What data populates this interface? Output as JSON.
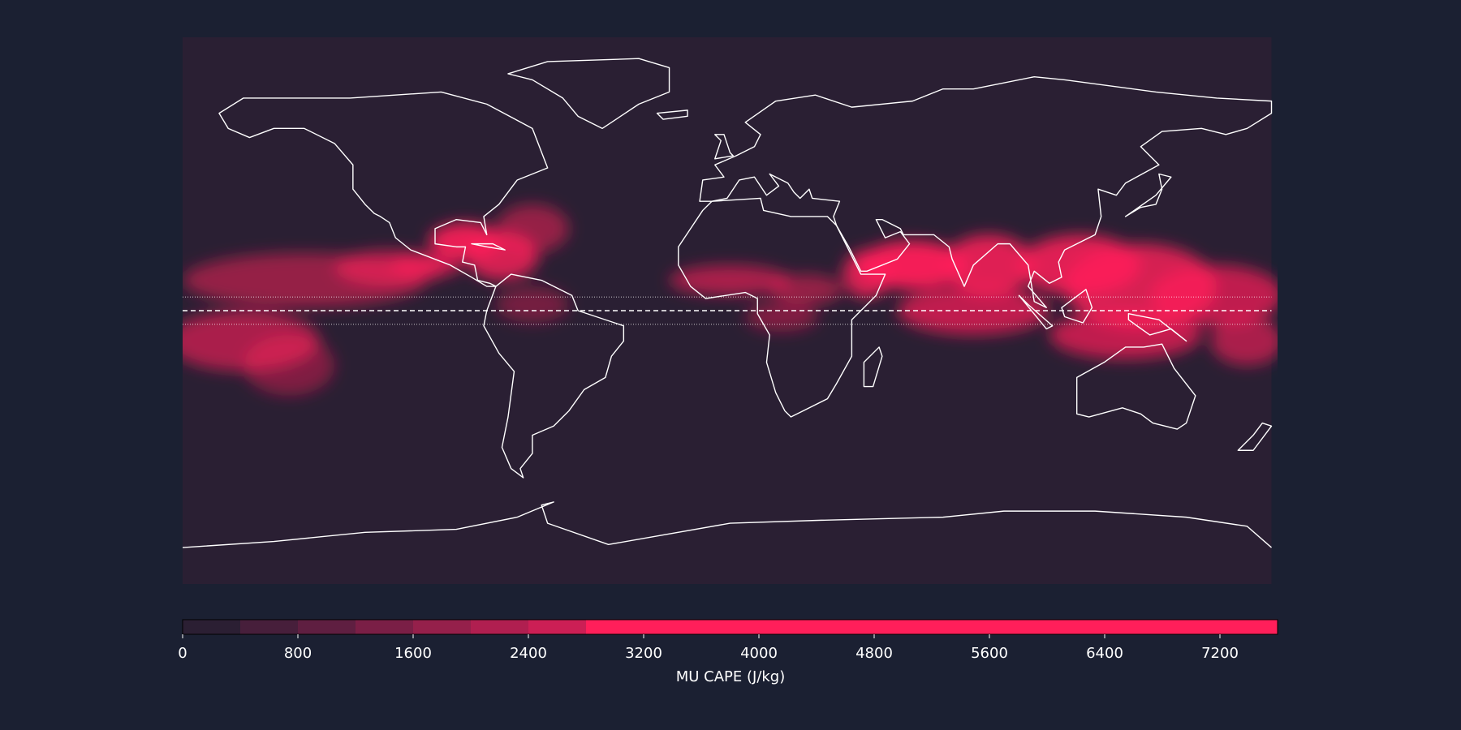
{
  "chart_data": {
    "type": "map",
    "colorbar": {
      "label": "MU CAPE (J/kg)",
      "lim": [
        0,
        7600
      ],
      "ticks": [
        0,
        800,
        1600,
        2400,
        3200,
        4000,
        4800,
        5600,
        6400,
        7200
      ],
      "levels": [
        0,
        400,
        800,
        1200,
        1600,
        2000,
        2400,
        2800,
        7600
      ],
      "colors": [
        "#2b1f33",
        "#471f3b",
        "#5f1f41",
        "#7a1f46",
        "#95204b",
        "#b01f50",
        "#cc1f55",
        "#ff1f5a"
      ]
    }
  }
}
